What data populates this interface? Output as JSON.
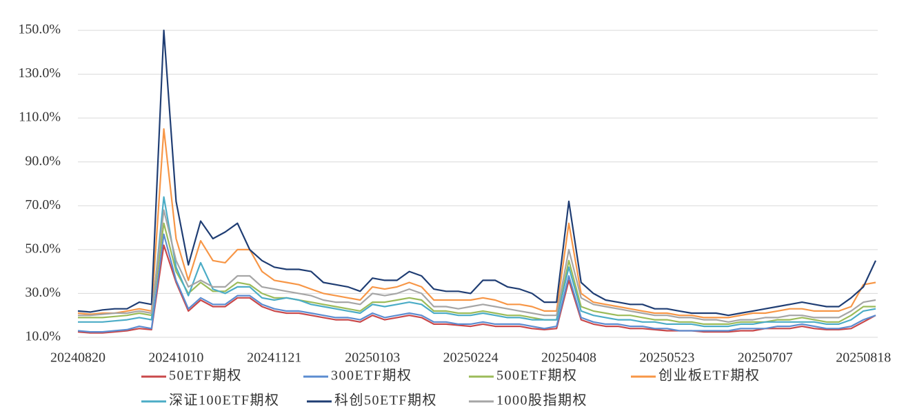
{
  "chart_data": {
    "type": "line",
    "categories": [
      "20240820",
      null,
      null,
      null,
      null,
      null,
      null,
      null,
      "20241010",
      null,
      null,
      null,
      null,
      null,
      null,
      null,
      "20241121",
      null,
      null,
      null,
      null,
      null,
      null,
      null,
      "20250103",
      null,
      null,
      null,
      null,
      null,
      null,
      null,
      "20250224",
      null,
      null,
      null,
      null,
      null,
      null,
      null,
      "20250408",
      null,
      null,
      null,
      null,
      null,
      null,
      null,
      "20250523",
      null,
      null,
      null,
      null,
      null,
      null,
      null,
      "20250707",
      null,
      null,
      null,
      null,
      null,
      null,
      null,
      "20250818",
      null
    ],
    "ylim": [
      10,
      150
    ],
    "yticks": [
      {
        "value": 10,
        "label": "10.0%"
      },
      {
        "value": 30,
        "label": "30.0%"
      },
      {
        "value": 50,
        "label": "50.0%"
      },
      {
        "value": 70,
        "label": "70.0%"
      },
      {
        "value": 90,
        "label": "90.0%"
      },
      {
        "value": 110,
        "label": "110.0%"
      },
      {
        "value": 130,
        "label": "130.0%"
      },
      {
        "value": 150,
        "label": "150.0%"
      }
    ],
    "grid": true,
    "series": [
      {
        "name": "50ETF期权",
        "color": "#c9484a",
        "values": [
          12.5,
          12,
          12,
          12.5,
          13,
          14,
          13.5,
          52,
          35,
          22,
          27,
          24,
          24,
          28,
          28,
          24,
          22,
          21,
          21,
          20,
          19,
          18,
          18,
          17,
          20,
          18,
          19,
          20,
          19,
          16,
          16,
          15.5,
          15,
          16,
          15,
          15,
          15,
          14,
          13.5,
          14,
          36,
          18,
          16,
          15,
          15,
          14,
          14,
          13.5,
          13,
          13,
          13,
          12.5,
          12.5,
          12.5,
          13,
          13,
          14,
          14,
          14,
          15,
          14,
          13.5,
          13.5,
          14,
          17,
          20
        ]
      },
      {
        "name": "300ETF期权",
        "color": "#5b8cd0",
        "values": [
          13,
          12.5,
          12.5,
          13,
          13.5,
          15,
          14,
          57,
          36,
          23,
          28,
          25,
          25,
          29,
          29,
          25,
          23,
          22,
          22,
          21,
          20,
          19,
          19,
          18,
          21,
          19,
          20,
          21,
          20,
          17,
          17,
          16,
          16,
          17,
          16,
          16,
          16,
          15,
          14,
          15,
          38,
          19,
          17,
          16,
          16,
          15,
          15,
          14,
          14,
          13,
          13,
          13,
          13,
          13,
          14,
          14,
          14,
          15,
          15,
          16,
          15,
          14,
          14,
          15,
          18,
          20
        ]
      },
      {
        "name": "500ETF期权",
        "color": "#9bbb59",
        "values": [
          19,
          19,
          19,
          19.5,
          20,
          21,
          20,
          62,
          40,
          30,
          35,
          31,
          31,
          35,
          34,
          30,
          28,
          28,
          27,
          26,
          25,
          24,
          23,
          22,
          26,
          26,
          27,
          28,
          27,
          22,
          22,
          21,
          21,
          22,
          21,
          20,
          20,
          19,
          18,
          18,
          45,
          24,
          22,
          21,
          20,
          20,
          19,
          18,
          18,
          17,
          17,
          16,
          16,
          16,
          17,
          17,
          17,
          18,
          18,
          19,
          18,
          17,
          17,
          20,
          24,
          24
        ]
      },
      {
        "name": "创业板ETF期权",
        "color": "#f79646",
        "values": [
          21,
          20.5,
          21,
          21,
          22,
          23,
          22,
          105,
          55,
          36,
          54,
          45,
          44,
          50,
          50,
          40,
          36,
          35,
          34,
          32,
          30,
          29,
          28,
          27,
          33,
          32,
          33,
          35,
          33,
          27,
          27,
          27,
          27,
          28,
          27,
          25,
          25,
          24,
          22,
          22,
          62,
          30,
          26,
          25,
          24,
          23,
          22,
          21,
          21,
          20,
          20,
          19,
          19,
          19,
          20,
          21,
          21,
          22,
          23,
          23,
          22,
          22,
          22,
          24,
          34,
          35
        ]
      },
      {
        "name": "深证100ETF期权",
        "color": "#4bacc6",
        "values": [
          17,
          17,
          17,
          17.5,
          18,
          19,
          18,
          74,
          42,
          29,
          44,
          32,
          30,
          33,
          33,
          28,
          27,
          28,
          27,
          25,
          24,
          23,
          22,
          21,
          25,
          24,
          25,
          26,
          25,
          21,
          21,
          20,
          20,
          21,
          20,
          19,
          19,
          18,
          18,
          18,
          42,
          22,
          20,
          19,
          18,
          18,
          17,
          17,
          16,
          16,
          16,
          15,
          15,
          15,
          16,
          16,
          17,
          17,
          17,
          17,
          17,
          16,
          16,
          18,
          22,
          23
        ]
      },
      {
        "name": "科创50ETF期权",
        "color": "#1f3d73",
        "values": [
          22,
          21.5,
          22.5,
          23,
          23,
          26,
          25,
          150,
          72,
          43,
          63,
          55,
          58,
          62,
          50,
          45,
          42,
          41,
          41,
          40,
          35,
          34,
          33,
          31,
          37,
          36,
          36,
          40,
          38,
          32,
          31,
          31,
          30,
          36,
          36,
          33,
          32,
          30,
          26,
          26,
          72,
          35,
          30,
          27,
          26,
          25,
          25,
          23,
          23,
          22,
          21,
          21,
          21,
          20,
          21,
          22,
          23,
          24,
          25,
          26,
          25,
          24,
          24,
          28,
          33,
          45
        ]
      },
      {
        "name": "1000股指期权",
        "color": "#a5a5a5",
        "values": [
          20,
          20,
          20.5,
          21,
          21,
          22,
          21,
          68,
          45,
          33,
          36,
          33,
          33,
          38,
          38,
          33,
          32,
          31,
          30,
          29,
          27,
          26,
          26,
          25,
          30,
          29,
          30,
          32,
          30,
          24,
          24,
          23,
          24,
          25,
          24,
          23,
          22,
          21,
          20,
          20,
          50,
          28,
          25,
          24,
          23,
          22,
          21,
          20,
          20,
          19,
          19,
          18,
          18,
          17,
          18,
          18,
          19,
          19,
          20,
          20,
          19,
          19,
          19,
          22,
          26,
          27
        ]
      }
    ]
  }
}
